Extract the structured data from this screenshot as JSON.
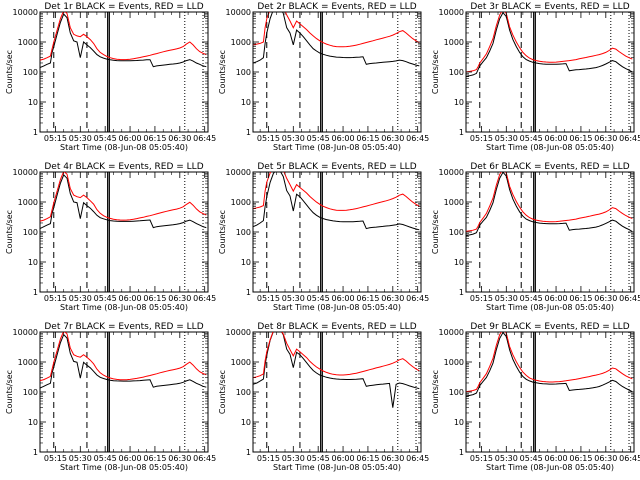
{
  "chart_data": {
    "type": "line",
    "layout": "3x3 grid",
    "title_template": "Det {det}  BLACK = Events, RED = LLD",
    "ylabel": "Counts/sec",
    "xlabel": "Start Time (08-Jun-08 05:05:40)",
    "xtick_labels": [
      "05:15",
      "05:30",
      "05:45",
      "06:00",
      "06:15",
      "06:30",
      "06:45"
    ],
    "xtick_values_min": [
      15,
      30,
      45,
      60,
      75,
      90,
      105
    ],
    "xlim_min": [
      5.7,
      107
    ],
    "yscale": "log",
    "ylim": [
      1,
      10000
    ],
    "ytick_labels": [
      "1",
      "10",
      "100",
      "1000",
      "10000"
    ],
    "ytick_values": [
      1,
      10,
      100,
      1000,
      10000
    ],
    "colors": {
      "events": "#000000",
      "lld": "#ff0000"
    },
    "series_names": [
      "Events",
      "LLD"
    ],
    "x_minutes": [
      5.7,
      8,
      10,
      12,
      13,
      14,
      16,
      18,
      20,
      22,
      24,
      26,
      28,
      30,
      32,
      34,
      36,
      38,
      40,
      42,
      44,
      46,
      48,
      50,
      52,
      54,
      56,
      58,
      60,
      62,
      64,
      66,
      68,
      70,
      72,
      74,
      76,
      78,
      80,
      82,
      84,
      86,
      88,
      90,
      92,
      94,
      96,
      98,
      100,
      102,
      104,
      106
    ],
    "panels": [
      {
        "det": "1r",
        "events": [
          140,
          160,
          180,
          200,
          450,
          700,
          1800,
          4500,
          8500,
          6500,
          2000,
          1100,
          1000,
          300,
          1000,
          800,
          650,
          500,
          380,
          320,
          290,
          270,
          255,
          245,
          240,
          238,
          236,
          236,
          237,
          240,
          242,
          245,
          250,
          255,
          258,
          150,
          160,
          165,
          170,
          175,
          180,
          185,
          190,
          200,
          215,
          240,
          260,
          230,
          200,
          180,
          160,
          150
        ],
        "lld": [
          250,
          270,
          300,
          340,
          600,
          1000,
          2500,
          6000,
          11000,
          9000,
          3000,
          1800,
          1600,
          1500,
          1800,
          1500,
          1200,
          900,
          600,
          450,
          380,
          330,
          300,
          280,
          268,
          262,
          260,
          262,
          268,
          278,
          290,
          305,
          320,
          340,
          360,
          385,
          410,
          440,
          470,
          500,
          530,
          560,
          590,
          630,
          700,
          850,
          1000,
          800,
          600,
          480,
          420,
          380
        ],
        "markers": {
          "dashed": [
            14,
            34
          ],
          "solid": [
            46.5,
            47.5
          ],
          "dotted": [
            93,
            104
          ]
        }
      },
      {
        "det": "2r",
        "events": [
          200,
          220,
          250,
          300,
          900,
          2000,
          6000,
          12000,
          15000,
          14000,
          9000,
          3000,
          2000,
          800,
          2500,
          2000,
          1500,
          1100,
          800,
          600,
          500,
          430,
          390,
          360,
          340,
          325,
          315,
          308,
          304,
          302,
          302,
          304,
          308,
          314,
          320,
          180,
          190,
          195,
          200,
          205,
          210,
          215,
          220,
          225,
          235,
          250,
          240,
          220,
          200,
          185,
          170,
          160
        ],
        "lld": [
          800,
          850,
          900,
          1000,
          3000,
          6000,
          12000,
          20000,
          25000,
          22000,
          15000,
          8000,
          5000,
          3000,
          5000,
          4000,
          3200,
          2600,
          2000,
          1600,
          1300,
          1100,
          950,
          850,
          780,
          730,
          700,
          690,
          690,
          700,
          720,
          750,
          790,
          840,
          900,
          960,
          1030,
          1100,
          1180,
          1260,
          1350,
          1450,
          1550,
          1700,
          1900,
          2200,
          2400,
          2000,
          1600,
          1300,
          1100,
          950
        ],
        "markers": {
          "dashed": [
            14,
            34
          ],
          "solid": [
            46.5,
            47.5
          ],
          "dotted": [
            93,
            104
          ]
        }
      },
      {
        "det": "3r",
        "events": [
          70,
          75,
          80,
          90,
          120,
          160,
          220,
          300,
          500,
          900,
          2500,
          6000,
          9500,
          7000,
          2500,
          1200,
          700,
          450,
          320,
          260,
          230,
          210,
          200,
          190,
          185,
          182,
          180,
          180,
          181,
          183,
          186,
          190,
          110,
          115,
          118,
          120,
          123,
          126,
          130,
          135,
          140,
          150,
          165,
          185,
          210,
          240,
          220,
          180,
          150,
          130,
          115,
          100
        ],
        "lld": [
          100,
          105,
          110,
          120,
          150,
          200,
          280,
          400,
          700,
          1300,
          3500,
          8000,
          12000,
          9000,
          3200,
          1700,
          1000,
          650,
          450,
          350,
          290,
          260,
          240,
          228,
          220,
          215,
          212,
          212,
          214,
          218,
          225,
          232,
          240,
          250,
          260,
          275,
          290,
          305,
          320,
          340,
          360,
          380,
          410,
          450,
          520,
          620,
          580,
          480,
          400,
          340,
          300,
          270
        ],
        "markers": {
          "dashed": [
            14,
            39
          ],
          "solid": [
            46.5,
            47.5
          ],
          "dotted": [
            93,
            104
          ]
        }
      },
      {
        "det": "4r",
        "events": [
          130,
          150,
          170,
          190,
          420,
          650,
          1700,
          4200,
          8000,
          6200,
          1900,
          1000,
          950,
          280,
          950,
          760,
          620,
          480,
          360,
          300,
          275,
          255,
          240,
          232,
          228,
          226,
          225,
          225,
          226,
          229,
          232,
          236,
          242,
          248,
          252,
          140,
          150,
          155,
          160,
          165,
          170,
          175,
          182,
          190,
          205,
          230,
          250,
          220,
          190,
          170,
          150,
          140
        ],
        "lld": [
          230,
          250,
          280,
          320,
          560,
          950,
          2300,
          5600,
          10500,
          8500,
          2800,
          1700,
          1500,
          1400,
          1700,
          1400,
          1100,
          850,
          560,
          420,
          350,
          310,
          285,
          268,
          258,
          252,
          250,
          252,
          258,
          268,
          280,
          295,
          310,
          330,
          350,
          375,
          400,
          430,
          460,
          490,
          520,
          550,
          580,
          620,
          690,
          830,
          980,
          780,
          590,
          470,
          410,
          370
        ],
        "markers": {
          "dashed": [
            14,
            34
          ],
          "solid": [
            46.5,
            47.5
          ],
          "dotted": [
            93,
            104
          ]
        }
      },
      {
        "det": "5r",
        "events": [
          150,
          170,
          200,
          240,
          700,
          1500,
          4500,
          9000,
          12000,
          11000,
          7000,
          2400,
          1600,
          500,
          1800,
          1500,
          1100,
          800,
          580,
          440,
          360,
          310,
          280,
          260,
          245,
          235,
          228,
          223,
          220,
          219,
          219,
          221,
          224,
          228,
          233,
          130,
          138,
          142,
          146,
          150,
          154,
          158,
          162,
          168,
          175,
          186,
          178,
          162,
          148,
          136,
          126,
          118
        ],
        "lld": [
          600,
          640,
          680,
          760,
          2300,
          4600,
          9200,
          15000,
          19000,
          17000,
          11500,
          6100,
          3800,
          2300,
          3800,
          3050,
          2450,
          2000,
          1520,
          1220,
          990,
          840,
          720,
          650,
          595,
          556,
          534,
          526,
          526,
          534,
          549,
          572,
          602,
          640,
          686,
          732,
          785,
          838,
          900,
          960,
          1030,
          1100,
          1180,
          1300,
          1450,
          1680,
          1830,
          1530,
          1220,
          990,
          840,
          720
        ],
        "markers": {
          "dashed": [
            14,
            34
          ],
          "solid": [
            46.5,
            47.5
          ],
          "dotted": [
            93,
            104
          ]
        }
      },
      {
        "det": "6r",
        "events": [
          75,
          80,
          85,
          95,
          125,
          170,
          230,
          310,
          520,
          950,
          2600,
          6200,
          9800,
          7300,
          2600,
          1250,
          730,
          470,
          335,
          270,
          240,
          218,
          208,
          198,
          193,
          190,
          188,
          188,
          189,
          191,
          194,
          198,
          115,
          120,
          123,
          125,
          128,
          131,
          135,
          140,
          146,
          156,
          172,
          193,
          219,
          250,
          229,
          188,
          156,
          136,
          120,
          104
        ],
        "lld": [
          105,
          110,
          115,
          125,
          156,
          208,
          291,
          416,
          728,
          1352,
          3640,
          8320,
          12500,
          9360,
          3330,
          1770,
          1040,
          676,
          468,
          364,
          302,
          270,
          250,
          237,
          229,
          224,
          220,
          220,
          223,
          227,
          234,
          241,
          250,
          260,
          270,
          286,
          302,
          317,
          333,
          354,
          374,
          395,
          426,
          468,
          541,
          645,
          603,
          499,
          416,
          354,
          312,
          281
        ],
        "markers": {
          "dashed": [
            14,
            39
          ],
          "solid": [
            46.5,
            47.5
          ],
          "dotted": [
            93,
            104
          ]
        }
      },
      {
        "det": "7r",
        "events": [
          135,
          155,
          175,
          195,
          435,
          680,
          1750,
          4350,
          8200,
          6300,
          1950,
          1050,
          980,
          290,
          980,
          780,
          640,
          490,
          370,
          310,
          282,
          262,
          248,
          238,
          234,
          232,
          230,
          230,
          231,
          234,
          237,
          240,
          246,
          252,
          256,
          145,
          155,
          160,
          165,
          170,
          175,
          180,
          186,
          195,
          210,
          235,
          255,
          225,
          195,
          175,
          155,
          145
        ],
        "lld": [
          240,
          260,
          290,
          330,
          580,
          980,
          2400,
          5800,
          10700,
          8700,
          2900,
          1750,
          1550,
          1450,
          1750,
          1450,
          1150,
          870,
          580,
          435,
          365,
          320,
          292,
          274,
          263,
          257,
          255,
          257,
          263,
          273,
          285,
          300,
          315,
          335,
          355,
          380,
          405,
          435,
          465,
          495,
          525,
          555,
          585,
          625,
          695,
          840,
          990,
          790,
          595,
          475,
          415,
          375
        ],
        "markers": {
          "dashed": [
            14,
            34
          ],
          "solid": [
            46.5,
            47.5
          ],
          "dotted": [
            93,
            104
          ]
        }
      },
      {
        "det": "8r",
        "events": [
          180,
          200,
          230,
          270,
          800,
          1700,
          5200,
          10500,
          13500,
          12500,
          8000,
          2700,
          1800,
          650,
          2100,
          1750,
          1300,
          950,
          690,
          520,
          430,
          370,
          335,
          310,
          292,
          280,
          272,
          266,
          263,
          261,
          261,
          263,
          266,
          271,
          277,
          155,
          164,
          169,
          174,
          179,
          184,
          189,
          194,
          30,
          180,
          200,
          190,
          175,
          160,
          148,
          138,
          130
        ],
        "lld": [
          300,
          320,
          350,
          400,
          1100,
          2200,
          5500,
          11000,
          14500,
          13000,
          8500,
          4200,
          2600,
          1600,
          2700,
          2200,
          1750,
          1400,
          1050,
          830,
          680,
          580,
          500,
          450,
          415,
          390,
          376,
          370,
          370,
          376,
          387,
          403,
          424,
          450,
          483,
          515,
          553,
          590,
          634,
          676,
          725,
          775,
          830,
          915,
          1020,
          1180,
          1290,
          1080,
          860,
          700,
          590,
          510
        ],
        "markers": {
          "dashed": [
            14,
            34
          ],
          "solid": [
            46.5,
            47.5
          ],
          "dotted": [
            93,
            104
          ]
        }
      },
      {
        "det": "9r",
        "events": [
          72,
          77,
          82,
          92,
          122,
          165,
          225,
          305,
          510,
          920,
          2550,
          6100,
          9600,
          7100,
          2550,
          1220,
          715,
          460,
          328,
          265,
          235,
          214,
          204,
          194,
          189,
          186,
          184,
          184,
          185,
          187,
          190,
          194,
          112,
          117,
          120,
          122,
          125,
          128,
          132,
          137,
          143,
          153,
          168,
          189,
          214,
          245,
          224,
          184,
          153,
          133,
          117,
          102
        ],
        "lld": [
          102,
          107,
          112,
          122,
          153,
          204,
          286,
          408,
          714,
          1326,
          3570,
          8160,
          12250,
          9180,
          3260,
          1735,
          1020,
          663,
          459,
          357,
          296,
          265,
          245,
          233,
          224,
          219,
          216,
          216,
          218,
          222,
          229,
          237,
          245,
          255,
          265,
          280,
          296,
          311,
          326,
          347,
          367,
          388,
          418,
          459,
          530,
          632,
          592,
          490,
          408,
          347,
          306,
          275
        ],
        "markers": {
          "dashed": [
            14,
            39
          ],
          "solid": [
            46.5,
            47.5
          ],
          "dotted": [
            93,
            104
          ]
        }
      }
    ]
  }
}
